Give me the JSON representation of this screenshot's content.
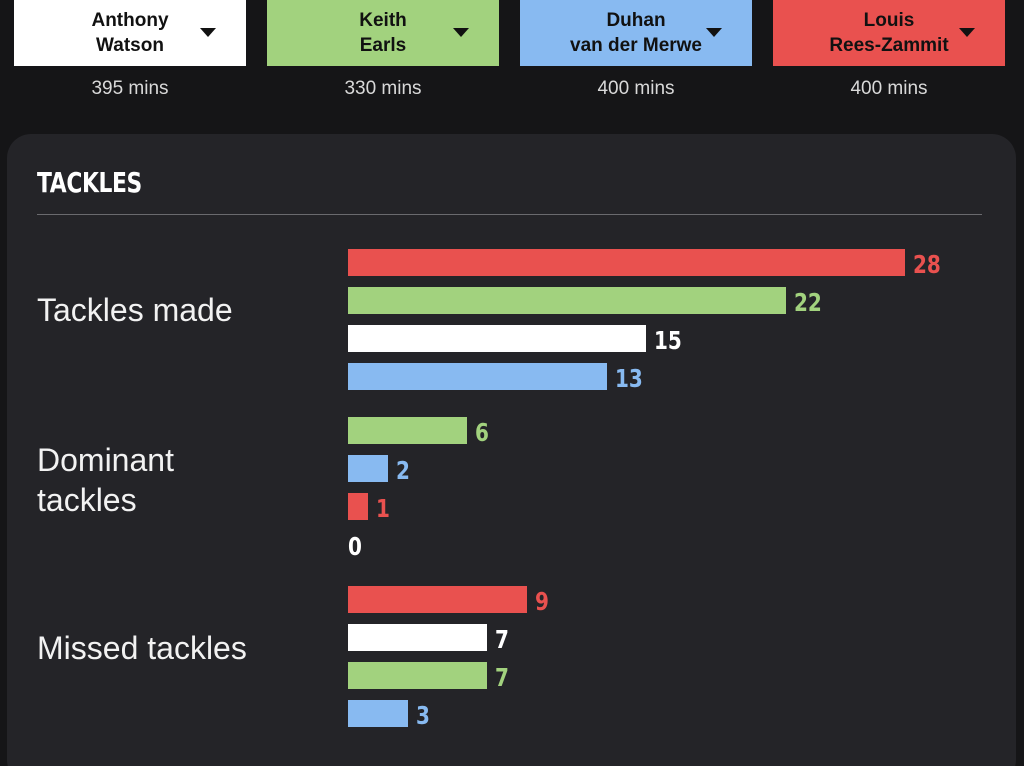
{
  "players": [
    {
      "first": "Anthony",
      "last": "Watson",
      "minutes": "395 mins",
      "color": "#ffffff"
    },
    {
      "first": "Keith",
      "last": "Earls",
      "minutes": "330 mins",
      "color": "#a2d27e"
    },
    {
      "first": "Duhan",
      "last": "van der Merwe",
      "minutes": "400 mins",
      "color": "#88baf1"
    },
    {
      "first": "Louis",
      "last": "Rees-Zammit",
      "minutes": "400 mins",
      "color": "#e9514f"
    }
  ],
  "panel": {
    "title": "TACKLES"
  },
  "chart_data": {
    "type": "bar",
    "orientation": "horizontal",
    "title": "TACKLES",
    "xlim": [
      0,
      28
    ],
    "groups": [
      {
        "label": "Tackles made",
        "bars": [
          {
            "player": "Louis Rees-Zammit",
            "value": 28,
            "color": "#e9514f"
          },
          {
            "player": "Keith Earls",
            "value": 22,
            "color": "#a2d27e"
          },
          {
            "player": "Anthony Watson",
            "value": 15,
            "color": "#ffffff"
          },
          {
            "player": "Duhan van der Merwe",
            "value": 13,
            "color": "#88baf1"
          }
        ]
      },
      {
        "label": "Dominant tackles",
        "bars": [
          {
            "player": "Keith Earls",
            "value": 6,
            "color": "#a2d27e"
          },
          {
            "player": "Duhan van der Merwe",
            "value": 2,
            "color": "#88baf1"
          },
          {
            "player": "Louis Rees-Zammit",
            "value": 1,
            "color": "#e9514f"
          },
          {
            "player": "Anthony Watson",
            "value": 0,
            "color": "#ffffff"
          }
        ]
      },
      {
        "label": "Missed tackles",
        "bars": [
          {
            "player": "Louis Rees-Zammit",
            "value": 9,
            "color": "#e9514f"
          },
          {
            "player": "Anthony Watson",
            "value": 7,
            "color": "#ffffff"
          },
          {
            "player": "Keith Earls",
            "value": 7,
            "color": "#a2d27e"
          },
          {
            "player": "Duhan van der Merwe",
            "value": 3,
            "color": "#88baf1"
          }
        ]
      }
    ]
  }
}
